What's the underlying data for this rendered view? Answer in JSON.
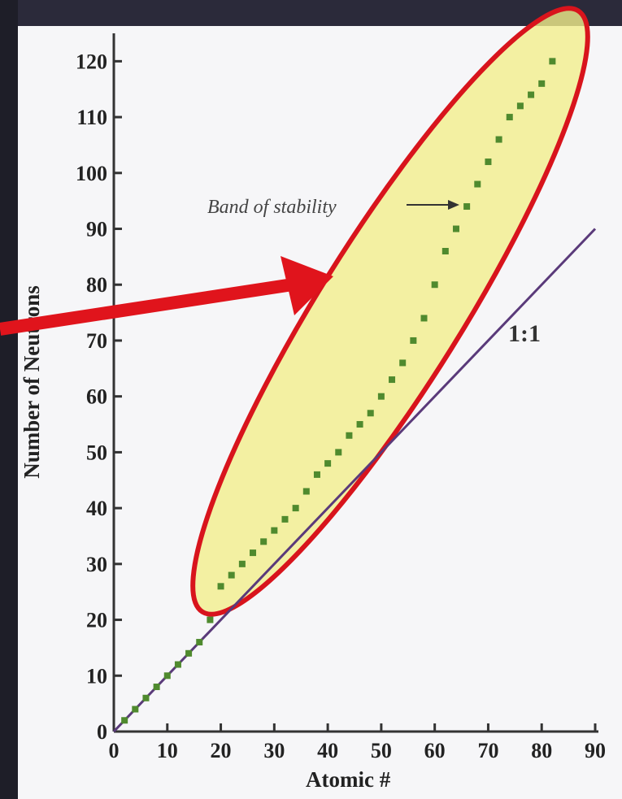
{
  "chart_data": {
    "type": "scatter",
    "x_label": "Atomic #",
    "y_label": "Number of Neutrons",
    "annotation": "Band of stability",
    "xlim": [
      0,
      90
    ],
    "xticks": [
      0,
      10,
      20,
      30,
      40,
      50,
      60,
      70,
      80,
      90
    ],
    "ylim": [
      0,
      125
    ],
    "yticks": [
      0,
      10,
      20,
      30,
      40,
      50,
      60,
      70,
      80,
      90,
      100,
      110,
      120
    ],
    "grid": false,
    "color": "#4f8a2e",
    "x": [
      2,
      4,
      6,
      8,
      10,
      12,
      14,
      16,
      18,
      20,
      22,
      24,
      26,
      28,
      30,
      32,
      34,
      36,
      38,
      40,
      42,
      44,
      46,
      48,
      50,
      52,
      54,
      56,
      58,
      60,
      62,
      64,
      66,
      68,
      70,
      72,
      74,
      76,
      78,
      80,
      82
    ],
    "values": [
      2,
      4,
      6,
      8,
      10,
      12,
      14,
      16,
      20,
      26,
      28,
      30,
      32,
      34,
      36,
      38,
      40,
      43,
      46,
      48,
      50,
      53,
      55,
      57,
      60,
      63,
      66,
      70,
      74,
      80,
      86,
      90,
      94,
      98,
      102,
      106,
      110,
      112,
      114,
      116,
      120
    ],
    "reference_line": {
      "label": "1:1",
      "color": "#5a3a7a",
      "x": [
        0,
        90
      ],
      "values": [
        0,
        90
      ]
    }
  }
}
